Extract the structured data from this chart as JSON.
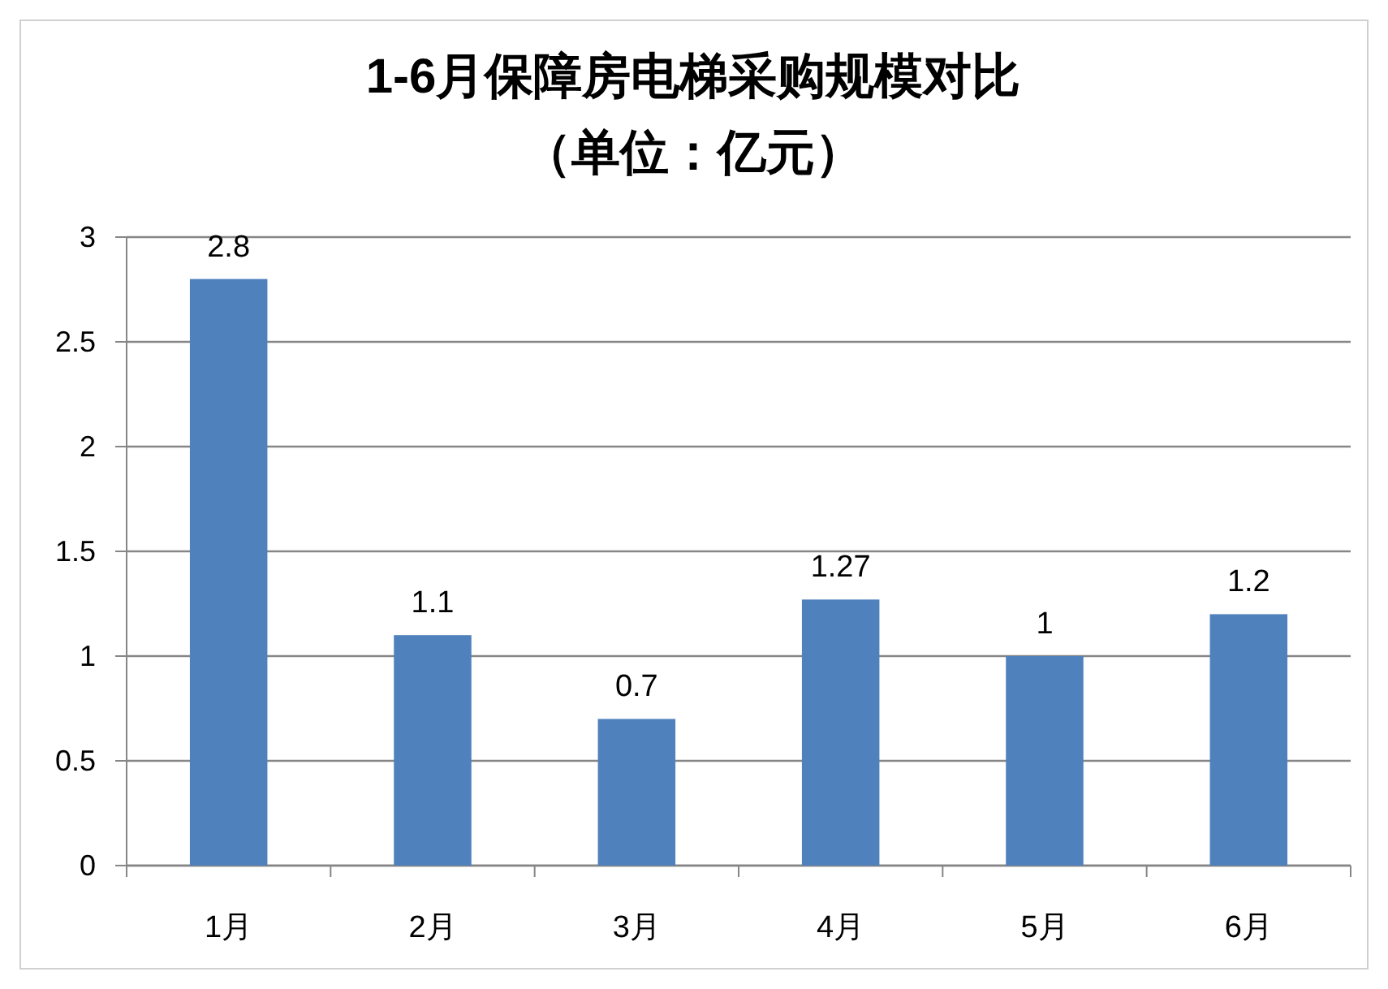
{
  "chart_data": {
    "type": "bar",
    "title": "1-6月保障房电梯采购规模对比",
    "subtitle": "（单位：亿元）",
    "categories": [
      "1月",
      "2月",
      "3月",
      "4月",
      "5月",
      "6月"
    ],
    "values": [
      2.8,
      1.1,
      0.7,
      1.27,
      1,
      1.2
    ],
    "color": "#4f81bd",
    "ylim": [
      0,
      3
    ],
    "yticks": [
      0,
      0.5,
      1,
      1.5,
      2,
      2.5,
      3
    ],
    "grid": "y",
    "data_labels": true
  }
}
